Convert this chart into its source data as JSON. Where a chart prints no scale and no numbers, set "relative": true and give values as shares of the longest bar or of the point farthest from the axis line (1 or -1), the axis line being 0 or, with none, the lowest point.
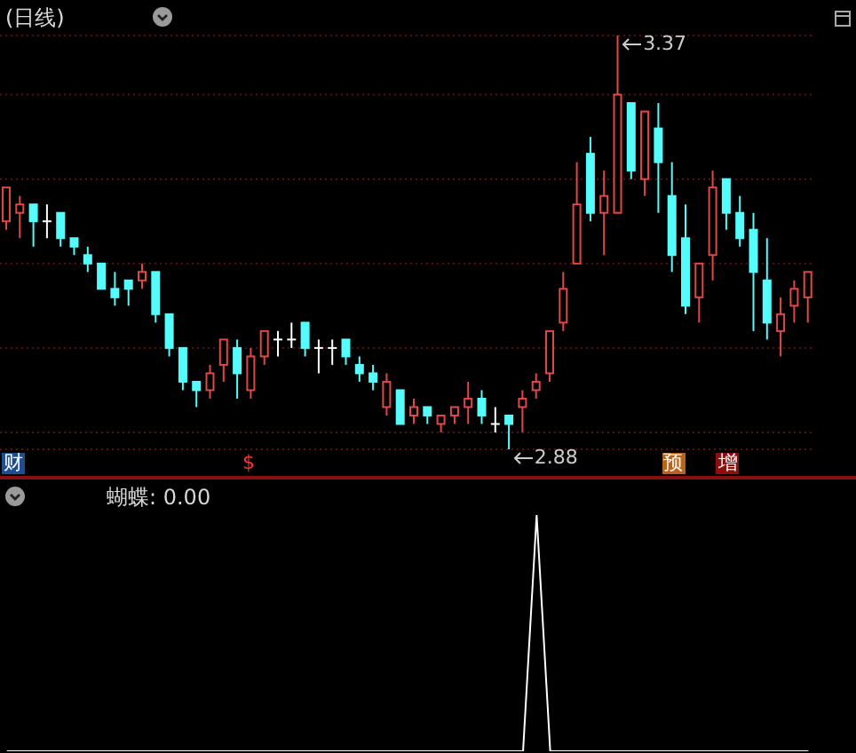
{
  "chart_data": [
    {
      "type": "candlestick",
      "title": "(日线)",
      "grid": "y",
      "categories": [
        null,
        null,
        null,
        null,
        null,
        null,
        null,
        null,
        null,
        null,
        null,
        null,
        null,
        null,
        null,
        null,
        null,
        null,
        null,
        null,
        null,
        null,
        null,
        null,
        null,
        null,
        null,
        null,
        null,
        null,
        null,
        null,
        null,
        null,
        null,
        null,
        null,
        null,
        null,
        null,
        null,
        null,
        null,
        null,
        null,
        null,
        null,
        null,
        null,
        null,
        null,
        null,
        null,
        null,
        null,
        null,
        null,
        null,
        null,
        null
      ],
      "ohlc": [
        [
          3.15,
          3.19,
          3.14,
          3.19
        ],
        [
          3.16,
          3.18,
          3.13,
          3.17
        ],
        [
          3.17,
          3.17,
          3.12,
          3.15
        ],
        [
          3.15,
          3.17,
          3.13,
          3.15
        ],
        [
          3.16,
          3.16,
          3.12,
          3.13
        ],
        [
          3.13,
          3.13,
          3.11,
          3.12
        ],
        [
          3.11,
          3.12,
          3.09,
          3.1
        ],
        [
          3.1,
          3.1,
          3.07,
          3.07
        ],
        [
          3.07,
          3.09,
          3.05,
          3.06
        ],
        [
          3.08,
          3.08,
          3.05,
          3.07
        ],
        [
          3.08,
          3.1,
          3.07,
          3.09
        ],
        [
          3.09,
          3.09,
          3.03,
          3.04
        ],
        [
          3.04,
          3.04,
          2.99,
          3.0
        ],
        [
          3.0,
          3.0,
          2.95,
          2.96
        ],
        [
          2.96,
          2.96,
          2.93,
          2.95
        ],
        [
          2.95,
          2.98,
          2.94,
          2.97
        ],
        [
          2.98,
          3.01,
          2.96,
          3.01
        ],
        [
          3.0,
          3.01,
          2.94,
          2.97
        ],
        [
          2.95,
          3.0,
          2.94,
          2.99
        ],
        [
          2.99,
          3.02,
          2.98,
          3.02
        ],
        [
          3.01,
          3.02,
          2.99,
          3.01
        ],
        [
          3.01,
          3.03,
          3.0,
          3.01
        ],
        [
          3.03,
          3.03,
          2.99,
          3.0
        ],
        [
          3.0,
          3.01,
          2.97,
          3.0
        ],
        [
          3.0,
          3.01,
          2.98,
          3.0
        ],
        [
          3.01,
          3.01,
          2.98,
          2.99
        ],
        [
          2.98,
          2.99,
          2.96,
          2.97
        ],
        [
          2.97,
          2.98,
          2.95,
          2.96
        ],
        [
          2.93,
          2.97,
          2.92,
          2.96
        ],
        [
          2.95,
          2.95,
          2.91,
          2.91
        ],
        [
          2.92,
          2.94,
          2.91,
          2.93
        ],
        [
          2.93,
          2.93,
          2.91,
          2.92
        ],
        [
          2.91,
          2.92,
          2.9,
          2.92
        ],
        [
          2.92,
          2.93,
          2.91,
          2.93
        ],
        [
          2.93,
          2.96,
          2.91,
          2.94
        ],
        [
          2.94,
          2.95,
          2.91,
          2.92
        ],
        [
          2.91,
          2.93,
          2.9,
          2.91
        ],
        [
          2.92,
          2.92,
          2.88,
          2.91
        ],
        [
          2.93,
          2.95,
          2.9,
          2.94
        ],
        [
          2.95,
          2.97,
          2.94,
          2.96
        ],
        [
          2.97,
          3.02,
          2.96,
          3.02
        ],
        [
          3.03,
          3.09,
          3.02,
          3.07
        ],
        [
          3.1,
          3.22,
          3.1,
          3.17
        ],
        [
          3.23,
          3.25,
          3.15,
          3.16
        ],
        [
          3.16,
          3.21,
          3.11,
          3.18
        ],
        [
          3.16,
          3.37,
          3.16,
          3.3
        ],
        [
          3.29,
          3.29,
          3.2,
          3.21
        ],
        [
          3.2,
          3.28,
          3.18,
          3.28
        ],
        [
          3.26,
          3.29,
          3.16,
          3.22
        ],
        [
          3.18,
          3.22,
          3.09,
          3.11
        ],
        [
          3.13,
          3.17,
          3.04,
          3.05
        ],
        [
          3.06,
          3.1,
          3.03,
          3.1
        ],
        [
          3.11,
          3.21,
          3.08,
          3.19
        ],
        [
          3.2,
          3.2,
          3.14,
          3.16
        ],
        [
          3.16,
          3.18,
          3.12,
          3.13
        ],
        [
          3.14,
          3.16,
          3.02,
          3.09
        ],
        [
          3.08,
          3.13,
          3.01,
          3.03
        ],
        [
          3.02,
          3.06,
          2.99,
          3.04
        ],
        [
          3.05,
          3.08,
          3.03,
          3.07
        ],
        [
          3.06,
          3.09,
          3.03,
          3.09
        ]
      ],
      "colors": [
        "#e04848",
        "#e04848",
        "#54fcfc",
        "#ffffff",
        "#54fcfc",
        "#54fcfc",
        "#54fcfc",
        "#54fcfc",
        "#54fcfc",
        "#54fcfc",
        "#e04848",
        "#54fcfc",
        "#54fcfc",
        "#54fcfc",
        "#54fcfc",
        "#e04848",
        "#e04848",
        "#54fcfc",
        "#e04848",
        "#e04848",
        "#ffffff",
        "#ffffff",
        "#54fcfc",
        "#ffffff",
        "#ffffff",
        "#54fcfc",
        "#54fcfc",
        "#54fcfc",
        "#e04848",
        "#54fcfc",
        "#e04848",
        "#54fcfc",
        "#e04848",
        "#e04848",
        "#e04848",
        "#54fcfc",
        "#ffffff",
        "#54fcfc",
        "#e04848",
        "#e04848",
        "#e04848",
        "#e04848",
        "#e04848",
        "#54fcfc",
        "#e04848",
        "#e04848",
        "#54fcfc",
        "#e04848",
        "#54fcfc",
        "#54fcfc",
        "#54fcfc",
        "#e04848",
        "#e04848",
        "#54fcfc",
        "#54fcfc",
        "#54fcfc",
        "#54fcfc",
        "#e04848",
        "#e04848",
        "#e04848"
      ],
      "yticks": [
        {
          "value": 3.3,
          "label": null
        },
        {
          "value": 3.2,
          "label": null
        },
        {
          "value": 3.1,
          "label": null
        },
        {
          "value": 3.0,
          "label": null
        },
        {
          "value": 2.9,
          "label": null
        }
      ],
      "annotations": [
        "3.37",
        "2.88",
        "财",
        "$",
        "预",
        "增"
      ]
    },
    {
      "type": "line",
      "title": "蝴蝶: 0.00",
      "relative": true,
      "color": "#ffffff",
      "categories": [
        null,
        null,
        null,
        null,
        null,
        null,
        null,
        null,
        null,
        null,
        null,
        null,
        null,
        null,
        null,
        null,
        null,
        null,
        null,
        null,
        null,
        null,
        null,
        null,
        null,
        null,
        null,
        null,
        null,
        null,
        null,
        null,
        null,
        null,
        null,
        null,
        null,
        null,
        null,
        null,
        null,
        null,
        null,
        null,
        null,
        null,
        null,
        null,
        null,
        null,
        null,
        null,
        null,
        null,
        null,
        null,
        null,
        null,
        null,
        null
      ],
      "values": [
        0,
        0,
        0,
        0,
        0,
        0,
        0,
        0,
        0,
        0,
        0,
        0,
        0,
        0,
        0,
        0,
        0,
        0,
        0,
        0,
        0,
        0,
        0,
        0,
        0,
        0,
        0,
        0,
        0,
        0,
        0,
        0,
        0,
        0,
        0,
        0,
        0,
        0,
        0,
        1,
        0,
        0,
        0,
        0,
        0,
        0,
        0,
        0,
        0,
        0,
        0,
        0,
        0,
        0,
        0,
        0,
        0,
        0,
        0,
        0
      ]
    }
  ]
}
